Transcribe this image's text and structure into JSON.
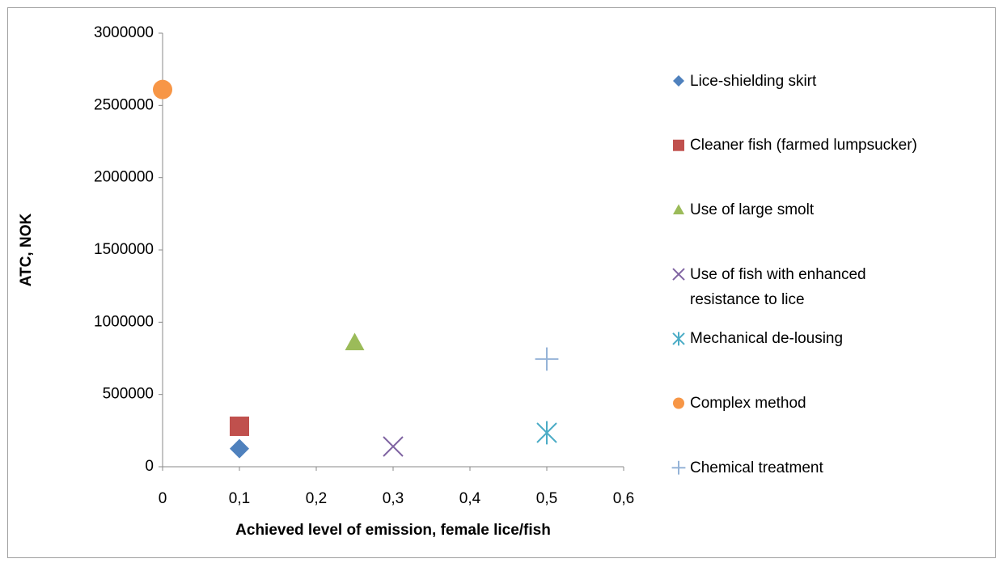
{
  "chart_data": {
    "type": "scatter",
    "x_label": "Achieved level of emission, female lice/fish",
    "y_label": "ATC, NOK",
    "xlim": [
      0,
      0.6
    ],
    "ylim": [
      0,
      3000000
    ],
    "xticks": [
      0,
      {
        "value": 0.1,
        "label": "0,1"
      },
      {
        "value": 0.2,
        "label": "0,2"
      },
      {
        "value": 0.3,
        "label": "0,3"
      },
      {
        "value": 0.4,
        "label": "0,4"
      },
      {
        "value": 0.5,
        "label": "0,5"
      },
      {
        "value": 0.6,
        "label": "0,6"
      }
    ],
    "yticks": [
      0,
      500000,
      1000000,
      1500000,
      2000000,
      2500000,
      3000000
    ],
    "legend": "right",
    "series": [
      {
        "name": "Lice-shielding skirt",
        "color": "#4f81bd",
        "marker": "diamond",
        "x": [
          0.1
        ],
        "y": [
          125000
        ]
      },
      {
        "name": "Cleaner fish (farmed lumpsucker)",
        "color": "#c0504d",
        "marker": "square",
        "x": [
          0.1
        ],
        "y": [
          280000
        ]
      },
      {
        "name": "Use of large smolt",
        "color": "#9bbb59",
        "marker": "triangle",
        "x": [
          0.25
        ],
        "y": [
          860000
        ]
      },
      {
        "name": "Use of fish with enhanced resistance to lice",
        "color": "#8064a2",
        "marker": "x",
        "x": [
          0.3
        ],
        "y": [
          140000
        ]
      },
      {
        "name": "Mechanical de-lousing",
        "color": "#4bacc6",
        "marker": "asterisk",
        "x": [
          0.5
        ],
        "y": [
          235000
        ]
      },
      {
        "name": "Complex method",
        "color": "#f79646",
        "marker": "circle",
        "x": [
          0
        ],
        "y": [
          2610000
        ]
      },
      {
        "name": "Chemical treatment",
        "color": "#95b3d7",
        "marker": "plus",
        "x": [
          0.5
        ],
        "y": [
          745000
        ]
      }
    ]
  }
}
